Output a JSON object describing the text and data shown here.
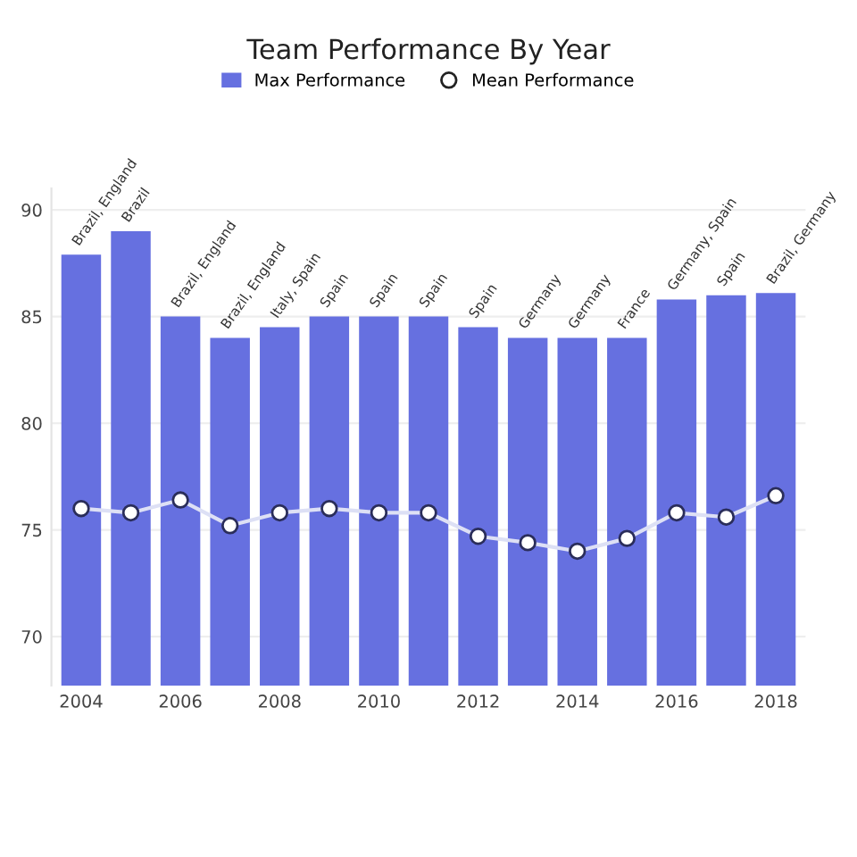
{
  "chart_data": {
    "type": "bar",
    "title": "Team Performance By Year",
    "categories": [
      "2004",
      null,
      "2006",
      null,
      "2008",
      null,
      "2010",
      null,
      "2012",
      null,
      "2014",
      null,
      "2016",
      null,
      "2018"
    ],
    "series": [
      {
        "name": "Max Performance",
        "color": "#6670e0",
        "values": [
          87.9,
          89.0,
          85.0,
          84.0,
          84.5,
          85.0,
          85.0,
          85.0,
          84.5,
          84.0,
          84.0,
          84.0,
          85.8,
          86.0,
          86.1
        ],
        "value_labels": [
          "Brazil, England",
          "Brazil",
          "Brazil, England",
          "Brazil, England",
          "Italy, Spain",
          "Spain",
          "Spain",
          "Spain",
          "Spain",
          "Germany",
          "Germany",
          "France",
          "Germany, Spain",
          "Spain",
          "Brazil, Germany"
        ]
      },
      {
        "name": "Mean Performance",
        "type": "line",
        "color": "#dde0f5",
        "values": [
          76.0,
          75.8,
          76.4,
          75.2,
          75.8,
          76.0,
          75.8,
          75.8,
          74.7,
          74.4,
          74.0,
          74.6,
          75.8,
          75.6,
          76.6
        ]
      }
    ],
    "ylim": [
      67.7,
      91
    ],
    "yticks": [
      70,
      75,
      80,
      85,
      90
    ],
    "grid": "y",
    "legend": "top",
    "marker": "circle"
  }
}
